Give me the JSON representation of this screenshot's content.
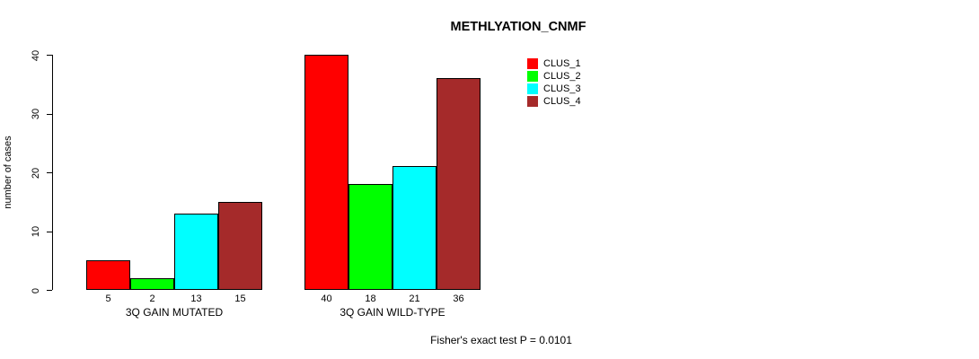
{
  "title": "METHLYATION_CNMF",
  "footer": "Fisher's exact test P = 0.0101",
  "chart_data": {
    "type": "bar",
    "title": "METHLYATION_CNMF",
    "xlabel": "",
    "ylabel": "number of cases",
    "ylim": [
      0,
      40
    ],
    "yticks": [
      0,
      10,
      20,
      30,
      40
    ],
    "grid": false,
    "legend_position": "top-right",
    "categories": [
      "3Q GAIN MUTATED",
      "3Q GAIN WILD-TYPE"
    ],
    "series": [
      {
        "name": "CLUS_1",
        "color": "#FF0000",
        "values": [
          5,
          40
        ]
      },
      {
        "name": "CLUS_2",
        "color": "#00FF00",
        "values": [
          2,
          18
        ]
      },
      {
        "name": "CLUS_3",
        "color": "#00FFFF",
        "values": [
          13,
          21
        ]
      },
      {
        "name": "CLUS_4",
        "color": "#A52A2A",
        "values": [
          15,
          36
        ]
      }
    ],
    "annotation": "Fisher's exact test P = 0.0101"
  }
}
